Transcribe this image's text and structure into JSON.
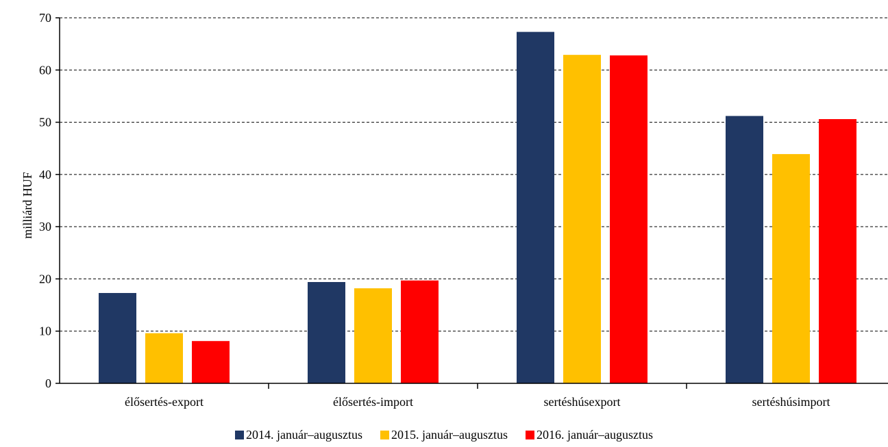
{
  "chart_data": {
    "type": "bar",
    "categories": [
      "élősertés-export",
      "élősertés-import",
      "sertéshúsexport",
      "sertéshúsimport"
    ],
    "series": [
      {
        "name": "2014. január–augusztus",
        "color": "#203864",
        "values": [
          17.3,
          19.4,
          67.3,
          51.2
        ]
      },
      {
        "name": "2015. január–augusztus",
        "color": "#FFC000",
        "values": [
          9.6,
          18.2,
          62.9,
          43.9
        ]
      },
      {
        "name": "2016. január–augusztus",
        "color": "#FF0000",
        "values": [
          8.1,
          19.7,
          62.8,
          50.6
        ]
      }
    ],
    "ylabel": "milliárd HUF",
    "ylim": [
      0,
      70
    ],
    "yticks": [
      0,
      10,
      20,
      30,
      40,
      50,
      60,
      70
    ],
    "grid": true,
    "legend_position": "bottom"
  }
}
